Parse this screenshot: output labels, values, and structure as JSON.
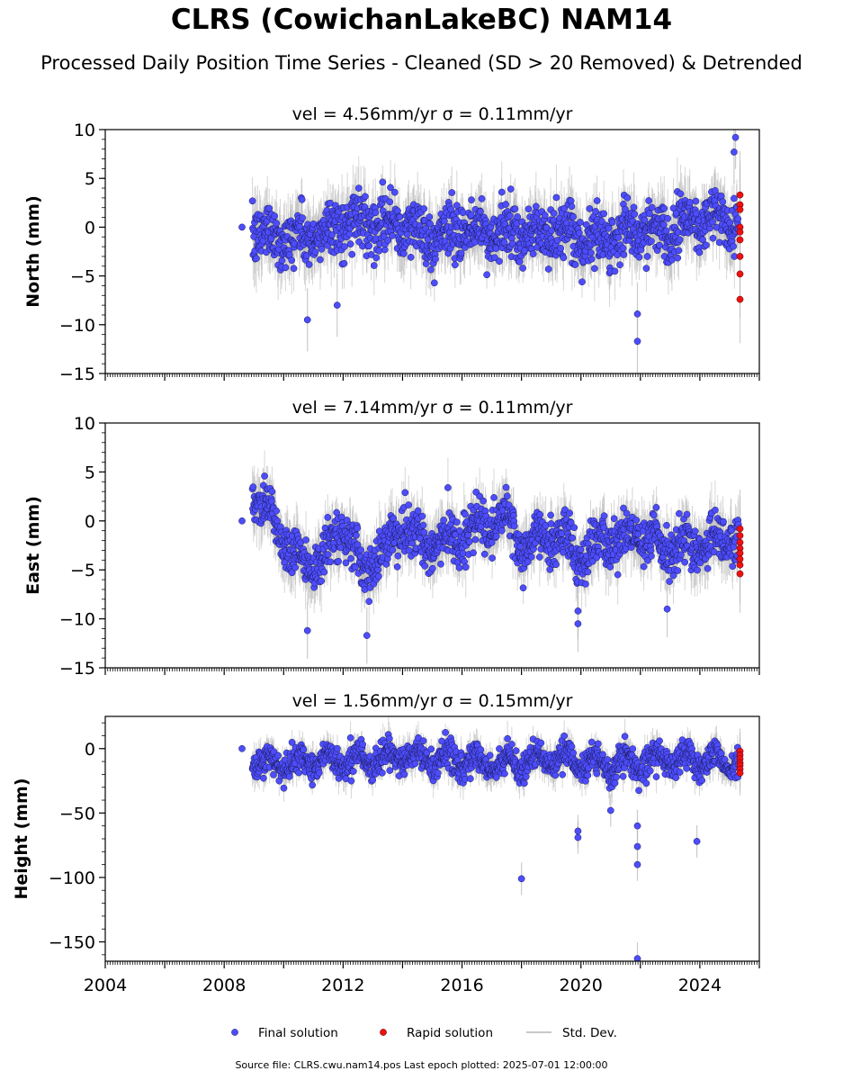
{
  "header": {
    "title": "CLRS (CowichanLakeBC) NAM14",
    "subtitle": "Processed Daily Position Time Series - Cleaned (SD > 20 Removed) & Detrended"
  },
  "chart_data": [
    {
      "type": "scatter",
      "title": "vel = 4.56mm/yr   σ = 0.11mm/yr",
      "ylabel": "North (mm)",
      "xlim": [
        2004,
        2026
      ],
      "ylim": [
        -15,
        10
      ],
      "yticks": [
        10,
        5,
        0,
        -5,
        -10,
        -15
      ],
      "ytick_labels": [
        "10",
        "5",
        "0",
        "−5",
        "−10",
        "−15"
      ],
      "xtick_labels_shown": false,
      "final_summary": {
        "x": [
          2008.6,
          2009.0,
          2010.0,
          2011.0,
          2012.0,
          2013.0,
          2014.0,
          2015.0,
          2016.0,
          2017.0,
          2018.0,
          2019.0,
          2020.0,
          2021.0,
          2022.0,
          2023.0,
          2024.0,
          2025.2
        ],
        "y": [
          0.0,
          -0.5,
          -1.0,
          -1.2,
          0.5,
          0.8,
          0.0,
          -1.0,
          -0.5,
          -0.5,
          -1.0,
          -0.5,
          -1.5,
          -0.8,
          -0.5,
          0.0,
          1.0,
          0.5
        ]
      },
      "final_outliers": {
        "x": [
          2010.8,
          2011.8,
          2021.9,
          2021.9,
          2025.2,
          2025.15
        ],
        "y": [
          -9.5,
          -8.0,
          -11.7,
          -8.9,
          9.2,
          7.7
        ]
      },
      "rapid": {
        "x": [
          2025.35,
          2025.35,
          2025.35,
          2025.35,
          2025.35,
          2025.35,
          2025.35,
          2025.35,
          2025.35
        ],
        "y": [
          3.3,
          2.3,
          1.8,
          0.0,
          -0.5,
          -1.3,
          -3.0,
          -4.8,
          -7.4
        ]
      }
    },
    {
      "type": "scatter",
      "title": "vel = 7.14mm/yr   σ = 0.11mm/yr",
      "ylabel": "East (mm)",
      "xlim": [
        2004,
        2026
      ],
      "ylim": [
        -15,
        10
      ],
      "yticks": [
        10,
        5,
        0,
        -5,
        -10,
        -15
      ],
      "ytick_labels": [
        "10",
        "5",
        "0",
        "−5",
        "−10",
        "−15"
      ],
      "xtick_labels_shown": false,
      "final_summary": {
        "x": [
          2008.6,
          2009.0,
          2009.5,
          2010.0,
          2010.8,
          2011.5,
          2012.0,
          2012.8,
          2013.5,
          2014.0,
          2015.0,
          2016.0,
          2017.0,
          2017.5,
          2018.0,
          2019.0,
          2019.5,
          2020.0,
          2021.0,
          2022.0,
          2023.0,
          2024.0,
          2025.2
        ],
        "y": [
          0.0,
          2.5,
          1.5,
          -2.0,
          -4.5,
          -3.0,
          -1.0,
          -5.5,
          -2.0,
          -1.0,
          -2.5,
          -1.5,
          -0.5,
          0.5,
          -3.0,
          -1.5,
          -2.0,
          -3.5,
          -2.0,
          -1.5,
          -3.0,
          -2.5,
          -1.5
        ]
      },
      "final_outliers": {
        "x": [
          2010.8,
          2012.8,
          2019.9,
          2019.9,
          2022.9
        ],
        "y": [
          -11.2,
          -11.7,
          -10.5,
          -9.2,
          -9.0
        ]
      },
      "rapid": {
        "x": [
          2025.35,
          2025.35,
          2025.35,
          2025.35,
          2025.35,
          2025.35,
          2025.35,
          2025.35
        ],
        "y": [
          -0.8,
          -1.5,
          -2.2,
          -2.8,
          -3.3,
          -3.9,
          -4.5,
          -5.4
        ]
      }
    },
    {
      "type": "scatter",
      "title": "vel = 1.56mm/yr   σ = 0.15mm/yr",
      "ylabel": "Height (mm)",
      "xlim": [
        2004,
        2026
      ],
      "ylim": [
        -165,
        25
      ],
      "yticks": [
        0,
        -50,
        -100,
        -150
      ],
      "ytick_labels": [
        "0",
        "−50",
        "−100",
        "−150"
      ],
      "xticks": [
        2004,
        2008,
        2012,
        2016,
        2020,
        2024
      ],
      "xtick_labels": [
        "2004",
        "2008",
        "2012",
        "2016",
        "2020",
        "2024"
      ],
      "xtick_labels_shown": true,
      "final_summary": {
        "x": [
          2008.6,
          2009.0,
          2010.0,
          2011.0,
          2012.0,
          2013.0,
          2014.0,
          2015.0,
          2016.0,
          2017.0,
          2018.0,
          2019.0,
          2020.0,
          2021.0,
          2022.0,
          2023.0,
          2024.0,
          2025.2
        ],
        "y": [
          0,
          -10,
          -12,
          -8,
          -10,
          -8,
          -6,
          -8,
          -10,
          -12,
          -10,
          -8,
          -10,
          -12,
          -10,
          -8,
          -10,
          -10
        ]
      },
      "final_outliers": {
        "x": [
          2018.0,
          2019.9,
          2019.9,
          2021.9,
          2021.9,
          2021.9,
          2023.9,
          2021.9,
          2021.0
        ],
        "y": [
          -101,
          -69,
          -64,
          -90,
          -76,
          -60,
          -72,
          -163,
          -48
        ]
      },
      "rapid": {
        "x": [
          2025.35,
          2025.35,
          2025.35,
          2025.35,
          2025.35,
          2025.35,
          2025.35
        ],
        "y": [
          -2,
          -5,
          -8,
          -11,
          -13,
          -16,
          -19
        ]
      }
    }
  ],
  "legend": {
    "final_label": "Final solution",
    "rapid_label": "Rapid solution",
    "sd_label": "Std. Dev.",
    "placement": "bottom-center"
  },
  "colors": {
    "final": "#4d4dff",
    "rapid": "#ee1111",
    "sd": "#b5b5b5"
  },
  "footnote": "Source file: CLRS.cwu.nam14.pos  Last epoch plotted: 2025-07-01 12:00:00"
}
